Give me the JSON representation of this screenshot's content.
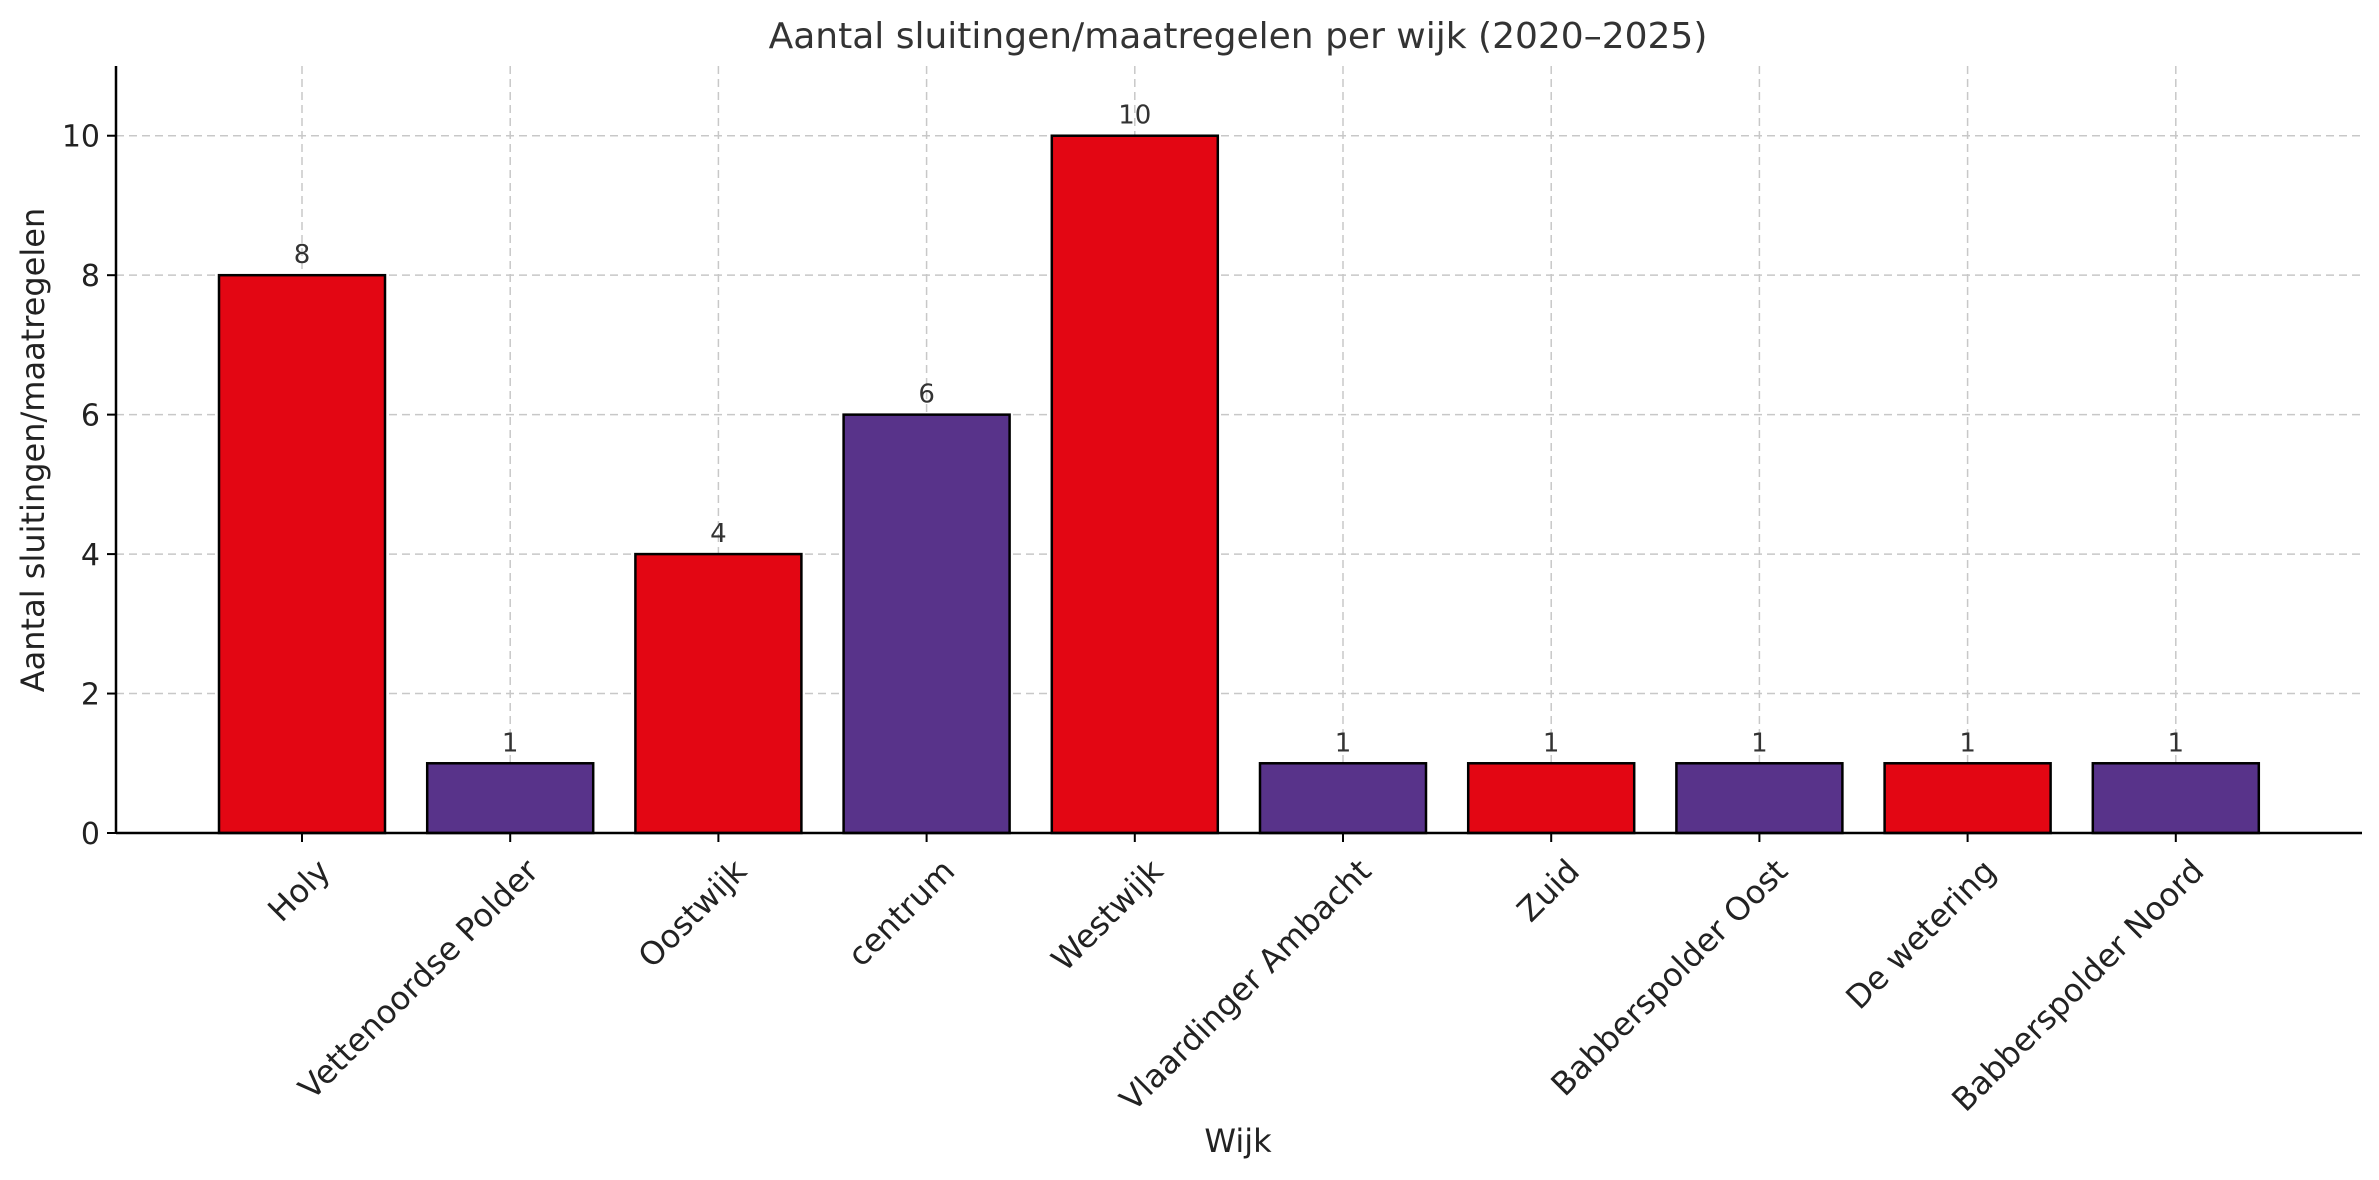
{
  "chart_data": {
    "type": "bar",
    "title": "Aantal sluitingen/maatregelen per wijk (2020–2025)",
    "xlabel": "Wijk",
    "ylabel": "Aantal sluitingen/maatregelen",
    "categories": [
      "Holy",
      "Vettenoordse Polder",
      "Oostwijk",
      "centrum",
      "Westwijk",
      "Vlaardinger Ambacht",
      "Zuid",
      "Babberspolder Oost",
      "De wetering",
      "Babberspolder Noord"
    ],
    "values": [
      8,
      1,
      4,
      6,
      10,
      1,
      1,
      1,
      1,
      1
    ],
    "bar_colors": [
      "#e30613",
      "#58338a",
      "#e30613",
      "#58338a",
      "#e30613",
      "#58338a",
      "#e30613",
      "#58338a",
      "#e30613",
      "#58338a"
    ],
    "yticks": [
      0,
      2,
      4,
      6,
      8,
      10
    ],
    "ylim": [
      0,
      11
    ],
    "grid": true,
    "legend": false,
    "data_labels": true
  }
}
